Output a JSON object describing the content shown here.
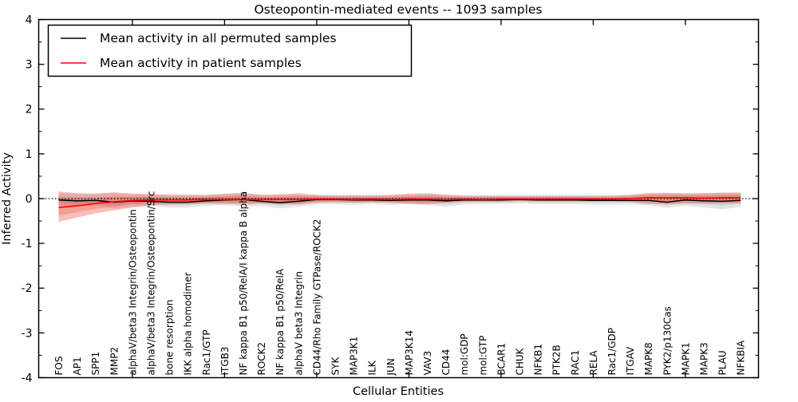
{
  "chart_data": {
    "type": "line",
    "title": "Osteopontin-mediated events -- 1093 samples",
    "xlabel": "Cellular Entities",
    "ylabel": "Inferred Activity",
    "ylim": [
      -4,
      4
    ],
    "yticks": [
      -4,
      -3,
      -2,
      -1,
      0,
      1,
      2,
      3,
      4
    ],
    "minor_ytick_step": 0.5,
    "x_major_tick_positions": [
      5,
      10,
      15,
      20,
      25,
      30,
      35
    ],
    "grid": false,
    "legend_position": "upper left",
    "zero_line": 0,
    "colors": {
      "permuted_line": "#000000",
      "permuted_band_outer": "rgba(0,0,0,0.10)",
      "permuted_band_inner": "rgba(0,0,0,0.07)",
      "patient_line": "#ff0000",
      "patient_band_outer": "rgba(228,40,27,0.30)",
      "patient_band_inner": "rgba(228,40,27,0.20)",
      "zero_line_color": "#000000"
    },
    "categories": [
      "FOS",
      "AP1",
      "SPP1",
      "MMP2",
      "alphaV/beta3 Integrin/Osteopontin",
      "alphaV/beta3 Integrin/Osteopontin/Src",
      "bone resorption",
      "IKK alpha homodimer",
      "Rac1/GTP",
      "ITGB3",
      "NF kappa B1 p50/RelA/I kappa B alpha",
      "ROCK2",
      "NF kappa B1 p50/RelA",
      "alphaV beta3 Integrin",
      "CD44/Rho Family GTPase/ROCK2",
      "SYK",
      "MAP3K1",
      "ILK",
      "JUN",
      "MAP3K14",
      "VAV3",
      "CD44",
      "mol:GDP",
      "mol:GTP",
      "BCAR1",
      "CHUK",
      "NFKB1",
      "PTK2B",
      "RAC1",
      "RELA",
      "Rac1/GDP",
      "ITGAV",
      "MAPK8",
      "PYK2/p130Cas",
      "MAPK1",
      "MAPK3",
      "PLAU",
      "NFKBIA"
    ],
    "series": [
      {
        "name": "Mean activity in all permuted samples",
        "color": "#000000",
        "values": [
          -0.03,
          -0.05,
          -0.04,
          -0.08,
          -0.05,
          -0.06,
          -0.08,
          -0.08,
          -0.05,
          -0.03,
          -0.02,
          -0.06,
          -0.09,
          -0.06,
          -0.02,
          -0.02,
          -0.03,
          -0.03,
          -0.04,
          -0.03,
          -0.03,
          -0.05,
          -0.03,
          -0.03,
          -0.03,
          -0.02,
          -0.03,
          -0.03,
          -0.03,
          -0.04,
          -0.04,
          -0.04,
          -0.04,
          -0.08,
          -0.03,
          -0.05,
          -0.06,
          -0.04
        ],
        "band_low": [
          -0.15,
          -0.18,
          -0.15,
          -0.22,
          -0.18,
          -0.16,
          -0.2,
          -0.2,
          -0.16,
          -0.14,
          -0.18,
          -0.16,
          -0.22,
          -0.18,
          -0.13,
          -0.12,
          -0.14,
          -0.12,
          -0.14,
          -0.12,
          -0.14,
          -0.18,
          -0.13,
          -0.12,
          -0.12,
          -0.11,
          -0.12,
          -0.12,
          -0.12,
          -0.13,
          -0.13,
          -0.13,
          -0.15,
          -0.2,
          -0.16,
          -0.2,
          -0.24,
          -0.18
        ],
        "band_high": [
          0.12,
          0.1,
          0.1,
          0.12,
          0.1,
          0.09,
          0.1,
          0.09,
          0.09,
          0.1,
          0.12,
          0.09,
          0.1,
          0.09,
          0.08,
          0.08,
          0.09,
          0.08,
          0.08,
          0.09,
          0.1,
          0.1,
          0.08,
          0.08,
          0.08,
          0.07,
          0.08,
          0.08,
          0.08,
          0.08,
          0.08,
          0.09,
          0.1,
          0.12,
          0.1,
          0.12,
          0.14,
          0.12
        ]
      },
      {
        "name": "Mean activity in patient samples",
        "color": "#ff0000",
        "values": [
          -0.2,
          -0.16,
          -0.11,
          -0.07,
          -0.04,
          -0.03,
          -0.03,
          -0.03,
          -0.02,
          -0.02,
          -0.02,
          -0.02,
          -0.02,
          -0.02,
          -0.01,
          -0.01,
          -0.02,
          -0.01,
          -0.02,
          -0.01,
          -0.01,
          -0.02,
          -0.01,
          -0.02,
          -0.01,
          -0.01,
          -0.01,
          -0.01,
          -0.01,
          -0.01,
          -0.01,
          0.0,
          0.02,
          0.02,
          0.02,
          0.01,
          0.02,
          0.02
        ],
        "band_low": [
          -0.52,
          -0.42,
          -0.33,
          -0.26,
          -0.2,
          -0.15,
          -0.13,
          -0.12,
          -0.11,
          -0.12,
          -0.13,
          -0.11,
          -0.12,
          -0.13,
          -0.09,
          -0.08,
          -0.09,
          -0.08,
          -0.09,
          -0.12,
          -0.13,
          -0.09,
          -0.07,
          -0.07,
          -0.07,
          -0.06,
          -0.06,
          -0.06,
          -0.06,
          -0.06,
          -0.06,
          -0.07,
          -0.12,
          -0.12,
          -0.11,
          -0.11,
          -0.11,
          -0.1
        ],
        "band_high": [
          0.16,
          0.12,
          0.11,
          0.14,
          0.11,
          0.1,
          0.08,
          0.08,
          0.08,
          0.11,
          0.13,
          0.08,
          0.09,
          0.12,
          0.08,
          0.07,
          0.07,
          0.07,
          0.08,
          0.11,
          0.12,
          0.08,
          0.06,
          0.06,
          0.06,
          0.06,
          0.06,
          0.06,
          0.06,
          0.06,
          0.06,
          0.08,
          0.13,
          0.13,
          0.12,
          0.12,
          0.13,
          0.14
        ]
      }
    ]
  }
}
